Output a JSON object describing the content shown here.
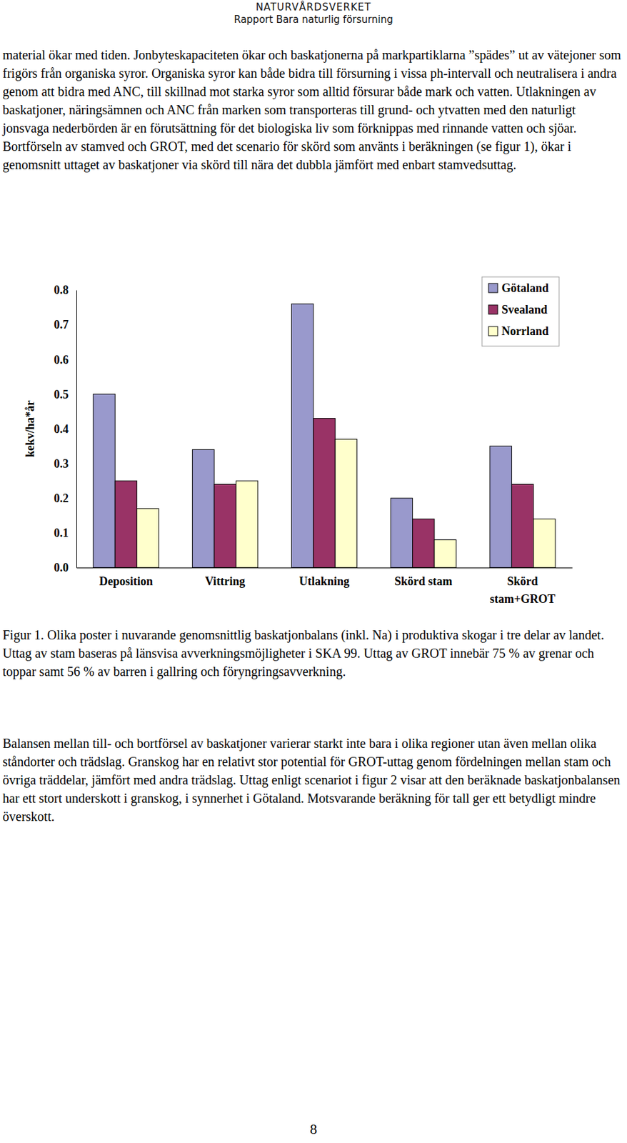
{
  "header": {
    "organization": "NATURVÅRDSVERKET",
    "report": "Rapport Bara naturlig försurning"
  },
  "paragraphs": [
    "material ökar med tiden. Jonbyteskapaciteten ökar och baskatjonerna på markpartiklarna ”spädes” ut av vätejoner som frigörs från organiska syror. Organiska syror kan både bidra till försurning i vissa ph-intervall och neutralisera i andra genom att bidra med ANC, till skillnad mot starka syror som alltid försurar både mark och vatten. Utlakningen av baskatjoner, näringsämnen och ANC från marken som transporteras till grund- och ytvatten med den naturligt jonsvaga nederbörden är en förutsättning för det biologiska liv som förknippas med rinnande vatten och sjöar.",
    "Bortförseln av stamved och GROT, med det scenario för skörd som använts i beräkningen (se figur 1), ökar i genomsnitt uttaget av baskatjoner via skörd till nära det dubbla jämfört med enbart stamvedsuttag."
  ],
  "chart_data": {
    "type": "bar",
    "y_label": "kekv/ha*år",
    "categories": [
      "Deposition",
      "Vittring",
      "Utlakning",
      "Skörd stam",
      "Skörd stam+GROT"
    ],
    "series": [
      {
        "name": "Götaland",
        "color": "#9999cc",
        "values": [
          0.5,
          0.34,
          0.76,
          0.2,
          0.35
        ]
      },
      {
        "name": "Svealand",
        "color": "#993366",
        "values": [
          0.25,
          0.24,
          0.43,
          0.14,
          0.24
        ]
      },
      {
        "name": "Norrland",
        "color": "#ffffcc",
        "values": [
          0.17,
          0.25,
          0.37,
          0.08,
          0.14
        ]
      }
    ],
    "ylim": [
      0,
      0.8
    ],
    "yticks": [
      {
        "value": 0,
        "label": "0.0"
      },
      0.1,
      0.2,
      0.3,
      0.4,
      0.5,
      0.6,
      0.7,
      0.8
    ],
    "grid": false,
    "legend": "upper right"
  },
  "caption": "Figur 1. Olika poster i nuvarande genomsnittlig baskatjonbalans (inkl. Na) i produktiva skogar i tre delar av landet. Uttag av stam baseras på länsvisa avverkningsmöjligheter i SKA 99. Uttag av GROT innebär 75 % av grenar och toppar samt 56 % av barren i gallring och föryngringsavverkning.",
  "paragraphs_after": [
    "Balansen mellan till- och bortförsel av baskatjoner varierar starkt inte bara i olika regioner utan även mellan olika ståndorter och trädslag. Granskog har en relativt stor potential för GROT-uttag genom fördelningen mellan stam och övriga träddelar, jämfört med andra trädslag. Uttag enligt scenariot i figur 2 visar att den beräknade baskatjonbalansen har ett stort underskott i granskog, i synnerhet i Götaland. Motsvarande beräkning för tall ger ett betydligt mindre överskott."
  ],
  "page_number": 8
}
